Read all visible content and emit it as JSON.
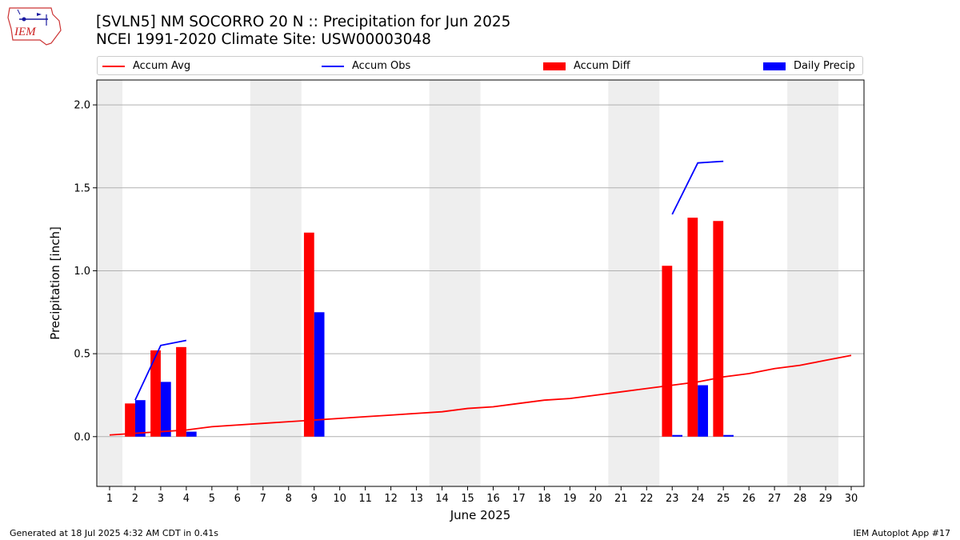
{
  "header": {
    "title_line1": "[SVLN5] NM SOCORRO 20 N :: Precipitation for Jun 2025",
    "title_line2": "NCEI 1991-2020 Climate Site: USW00003048",
    "logo_text": "IEM"
  },
  "legend": {
    "placement": "top, above plot",
    "items": [
      {
        "label": "Accum Avg",
        "color": "#ff0000",
        "kind": "line"
      },
      {
        "label": "Accum Obs",
        "color": "#0000ff",
        "kind": "line"
      },
      {
        "label": "Accum Diff",
        "color": "#ff0000",
        "kind": "bar"
      },
      {
        "label": "Daily Precip",
        "color": "#0000ff",
        "kind": "bar"
      }
    ]
  },
  "footer": {
    "left": "Generated at 18 Jul 2025 4:32 AM CDT in 0.41s",
    "right": "IEM Autoplot App #17"
  },
  "chart_data": {
    "type": "bar",
    "title": "[SVLN5] NM SOCORRO 20 N :: Precipitation for Jun 2025",
    "xlabel": "June 2025",
    "ylabel": "Precipitation [inch]",
    "xlim": [
      0.5,
      30.5
    ],
    "ylim": [
      -0.3,
      2.15
    ],
    "yticks": [
      0.0,
      0.5,
      1.0,
      1.5,
      2.0
    ],
    "ytick_labels": [
      "0.0",
      "0.5",
      "1.0",
      "1.5",
      "2.0"
    ],
    "x": [
      1,
      2,
      3,
      4,
      5,
      6,
      7,
      8,
      9,
      10,
      11,
      12,
      13,
      14,
      15,
      16,
      17,
      18,
      19,
      20,
      21,
      22,
      23,
      24,
      25,
      26,
      27,
      28,
      29,
      30
    ],
    "xtick_labels": [
      "1",
      "2",
      "3",
      "4",
      "5",
      "6",
      "7",
      "8",
      "9",
      "10",
      "11",
      "12",
      "13",
      "14",
      "15",
      "16",
      "17",
      "18",
      "19",
      "20",
      "21",
      "22",
      "23",
      "24",
      "25",
      "26",
      "27",
      "28",
      "29",
      "30"
    ],
    "grid": "horizontal",
    "weekend_shading": [
      [
        0.5,
        1.5
      ],
      [
        6.5,
        8.5
      ],
      [
        13.5,
        15.5
      ],
      [
        20.5,
        22.5
      ],
      [
        27.5,
        29.5
      ]
    ],
    "series": [
      {
        "name": "Accum Avg",
        "type": "line",
        "color": "#ff0000",
        "x": [
          1,
          2,
          3,
          4,
          5,
          6,
          7,
          8,
          9,
          10,
          11,
          12,
          13,
          14,
          15,
          16,
          17,
          18,
          19,
          20,
          21,
          22,
          23,
          24,
          25,
          26,
          27,
          28,
          29,
          30
        ],
        "values": [
          0.01,
          0.02,
          0.03,
          0.04,
          0.06,
          0.07,
          0.08,
          0.09,
          0.1,
          0.11,
          0.12,
          0.13,
          0.14,
          0.15,
          0.17,
          0.18,
          0.2,
          0.22,
          0.23,
          0.25,
          0.27,
          0.29,
          0.31,
          0.33,
          0.36,
          0.38,
          0.41,
          0.43,
          0.46,
          0.49
        ]
      },
      {
        "name": "Accum Obs",
        "type": "line",
        "color": "#0000ff",
        "segments": [
          {
            "x": [
              2,
              3,
              4
            ],
            "values": [
              0.22,
              0.55,
              0.58
            ]
          },
          {
            "x": [
              23,
              24,
              25
            ],
            "values": [
              1.34,
              1.65,
              1.66
            ]
          }
        ]
      },
      {
        "name": "Accum Diff",
        "type": "bar",
        "color": "#ff0000",
        "x": [
          2,
          3,
          4,
          9,
          23,
          24,
          25
        ],
        "values": [
          0.2,
          0.52,
          0.54,
          1.23,
          1.03,
          1.32,
          1.3
        ]
      },
      {
        "name": "Daily Precip",
        "type": "bar",
        "color": "#0000ff",
        "x": [
          2,
          3,
          4,
          9,
          23,
          24,
          25
        ],
        "values": [
          0.22,
          0.33,
          0.03,
          0.75,
          0.01,
          0.31,
          0.01
        ]
      }
    ]
  }
}
